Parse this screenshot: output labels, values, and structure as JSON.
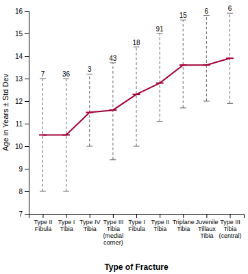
{
  "chart_data": {
    "type": "line",
    "categories": [
      "Type II\nFibula",
      "Type I\nTibia",
      "Type IV\nTibia",
      "Type III\nTibia\n(medial\ncorner)",
      "Type I\nFibula",
      "Type II\nTibia",
      "Triplane\nTibia",
      "Juvenile\nTillaux\nTibia",
      "Type III\nTibia\n(central)"
    ],
    "values": [
      10.5,
      10.5,
      11.5,
      11.6,
      12.3,
      12.8,
      13.6,
      13.6,
      13.9
    ],
    "upper_errors": [
      2.5,
      2.5,
      1.7,
      2.1,
      2.1,
      2.2,
      2.0,
      2.2,
      2.0
    ],
    "lower_errors": [
      2.5,
      2.5,
      1.5,
      2.2,
      2.3,
      1.7,
      1.9,
      1.6,
      2.0
    ],
    "n": [
      7,
      36,
      3,
      43,
      18,
      91,
      15,
      6,
      6
    ],
    "color": "#a0003a",
    "ylabel": "Age in Years ± Std Dev",
    "xlabel": "Type of Fracture",
    "ylim": [
      7,
      16
    ],
    "yticks": [
      7,
      8,
      9,
      10,
      11,
      12,
      13,
      14,
      15,
      16
    ],
    "grid": false
  }
}
